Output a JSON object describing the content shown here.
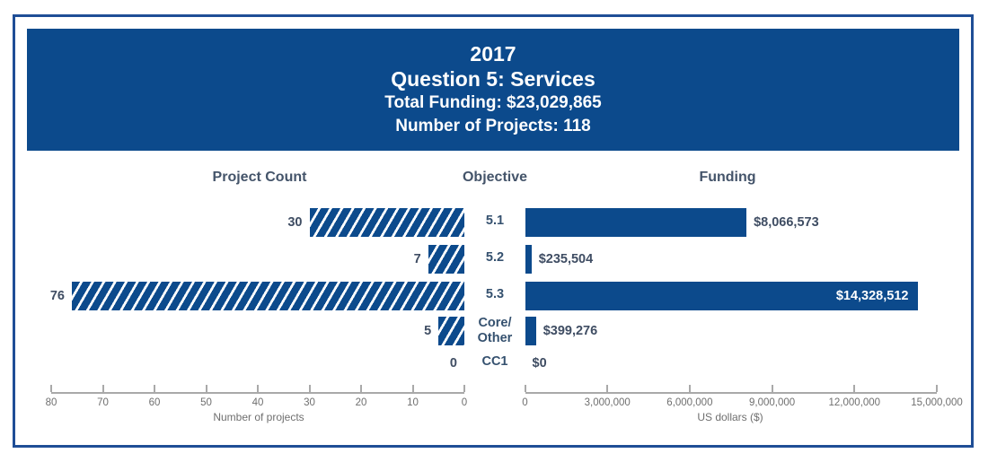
{
  "banner": {
    "year": "2017",
    "question": "Question 5: Services",
    "total_funding": "Total Funding: $23,029,865",
    "project_count": "Number of Projects: 118"
  },
  "column_headers": {
    "project_count": "Project Count",
    "objective": "Objective",
    "funding": "Funding"
  },
  "chart_data": {
    "type": "bar",
    "layout": "paired-horizontal",
    "title": "2017 Question 5: Services",
    "categories": [
      "5.1",
      "5.2",
      "5.3",
      "Core/Other",
      "CC1"
    ],
    "category_display": [
      [
        "5.1"
      ],
      [
        "5.2"
      ],
      [
        "5.3"
      ],
      [
        "Core/",
        "Other"
      ],
      [
        "CC1"
      ]
    ],
    "series": [
      {
        "name": "Project Count",
        "style": "hatched",
        "values": [
          30,
          7,
          76,
          5,
          0
        ],
        "data_labels": [
          "30",
          "7",
          "76",
          "5",
          "0"
        ],
        "axis": {
          "label": "Number of projects",
          "min": 0,
          "max": 80,
          "reversed": true,
          "tick_values": [
            80,
            70,
            60,
            50,
            40,
            30,
            20,
            10,
            0
          ],
          "ticks": [
            "80",
            "70",
            "60",
            "50",
            "40",
            "30",
            "20",
            "10",
            "0"
          ]
        }
      },
      {
        "name": "Funding",
        "style": "solid",
        "values": [
          8066573,
          235504,
          14328512,
          399276,
          0
        ],
        "data_labels": [
          "$8,066,573",
          "$235,504",
          "$14,328,512",
          "$399,276",
          "$0"
        ],
        "labels_inside": [
          false,
          false,
          true,
          false,
          false
        ],
        "axis": {
          "label": "US dollars ($)",
          "min": 0,
          "max": 15000000,
          "reversed": false,
          "tick_values": [
            0,
            3000000,
            6000000,
            9000000,
            12000000,
            15000000
          ],
          "ticks": [
            "0",
            "3,000,000",
            "6,000,000",
            "9,000,000",
            "12,000,000",
            "15,000,000"
          ]
        }
      }
    ],
    "legend": "none",
    "grid": false
  },
  "colors": {
    "navy": "#0c4a8c",
    "frame_border": "#1f4e96",
    "axis_gray": "#a9a9a9",
    "tick_text": "#6f6f6f",
    "heading_text": "#44546a",
    "label_text": "#3f4d63",
    "objective_text": "#35516f",
    "bar_label_inside": "#ffffff"
  }
}
